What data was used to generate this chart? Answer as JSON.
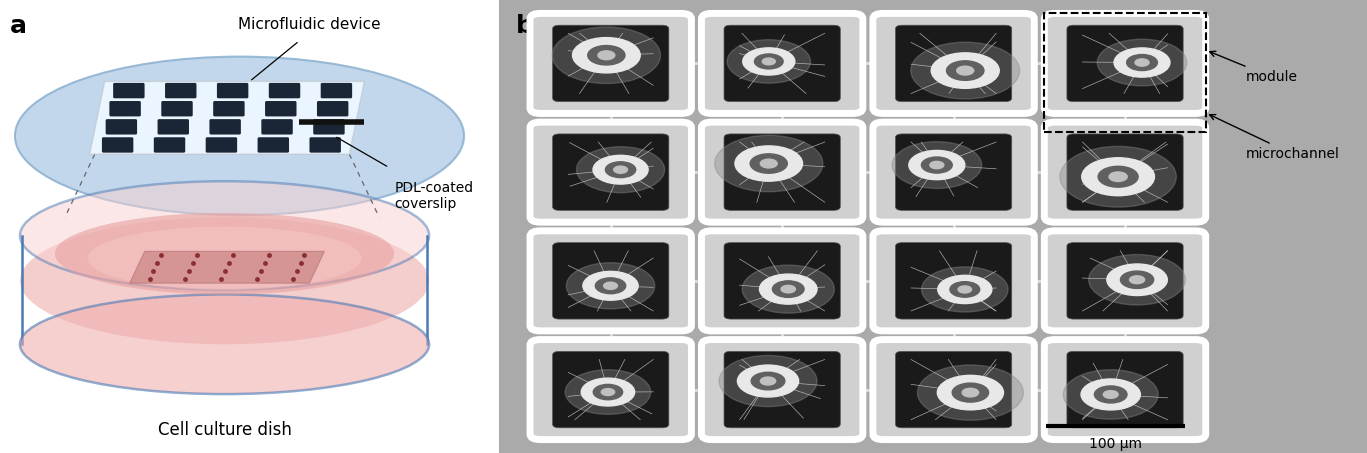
{
  "panel_a_label": "a",
  "panel_b_label": "b",
  "title_microfluidic": "Microfluidic device",
  "label_pdl": "PDL-coated\ncoverslip",
  "label_dish": "Cell culture dish",
  "label_module": "module",
  "label_microchannel": "microchannel",
  "scale_bar_text": "100 μm",
  "bg_color": "#ffffff",
  "ellipse_color": "#c0d8ee",
  "dish_blue": "#4a7ab5",
  "dish_pink_light": "#f5c8c8",
  "dish_pink_dark": "#e89898",
  "panel_b_bg": "#aaaaaa",
  "module_border": "#ffffff",
  "module_inner": "#1e1e1e",
  "module_mid": "#888888"
}
